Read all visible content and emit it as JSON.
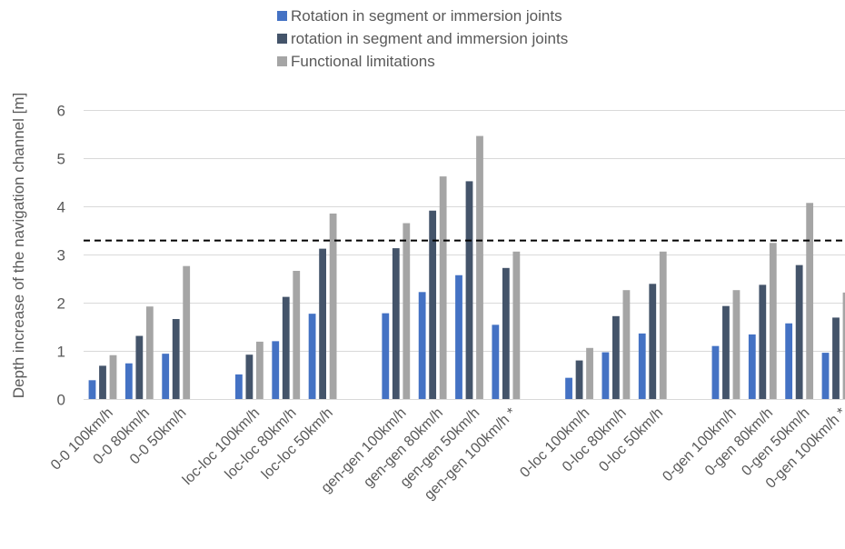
{
  "chart_data": {
    "type": "bar",
    "ylabel": "Depth increase of the navigation channel [m]",
    "xlabel": "",
    "ylim": [
      0,
      6
    ],
    "yticks": [
      0,
      1,
      2,
      3,
      4,
      5,
      6
    ],
    "grid": true,
    "legend_position": "top",
    "reference_line": {
      "value": 3.3,
      "style": "dashed",
      "color": "#000000"
    },
    "categories": [
      "0-0 100km/h",
      "0-0 80km/h",
      "0-0 50km/h",
      "loc-loc 100km/h",
      "loc-loc 80km/h",
      "loc-loc 50km/h",
      "gen-gen 100km/h",
      "gen-gen 80km/h",
      "gen-gen 50km/h",
      "gen-gen 100km/h *",
      "0-loc 100km/h",
      "0-loc 80km/h",
      "0-loc 50km/h",
      "0-gen 100km/h",
      "0-gen 80km/h",
      "0-gen 50km/h",
      "0-gen 100km/h *"
    ],
    "groups": [
      3,
      3,
      4,
      3,
      4
    ],
    "series": [
      {
        "name": "Rotation in segment or immersion joints",
        "color": "#4472C4",
        "values": [
          0.4,
          0.75,
          0.95,
          0.52,
          1.21,
          1.78,
          1.79,
          2.23,
          2.58,
          1.55,
          0.45,
          0.98,
          1.37,
          1.11,
          1.35,
          1.58,
          0.97
        ]
      },
      {
        "name": "rotation in segment and immersion joints",
        "color": "#44546A",
        "values": [
          0.7,
          1.32,
          1.67,
          0.93,
          2.13,
          3.13,
          3.14,
          3.92,
          4.53,
          2.73,
          0.81,
          1.73,
          2.4,
          1.94,
          2.38,
          2.79,
          1.7
        ]
      },
      {
        "name": "Functional limitations",
        "color": "#A5A5A5",
        "values": [
          0.92,
          1.93,
          2.77,
          1.2,
          2.67,
          3.86,
          3.66,
          4.63,
          5.47,
          3.07,
          1.07,
          2.27,
          3.07,
          2.27,
          3.25,
          4.08,
          2.22
        ]
      }
    ]
  }
}
